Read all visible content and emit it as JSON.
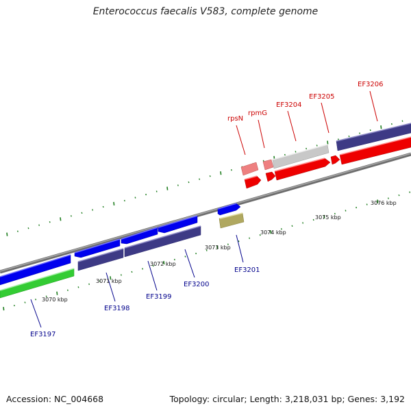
{
  "title": "Enterococcus faecalis V583, complete genome",
  "footer": {
    "accession": "Accession: NC_004668",
    "topology": "Topology: circular; Length: 3,218,031 bp; Genes: 3,192"
  },
  "colors": {
    "backbone": "#7d7d7d",
    "tick": "#1e7d1e",
    "label_red": "#cc0000",
    "label_blue": "#00008b",
    "blue_gene": "#0000ee",
    "purple_gene": "#3d3a85",
    "green_gene": "#33cc33",
    "red_gene": "#ee0000",
    "pink_gene": "#ee8080",
    "grey_gene": "#c8c8c8",
    "olive_gene": "#b0a860"
  },
  "scale_labels": [
    {
      "text": "3070 kbp",
      "kbp": 3070
    },
    {
      "text": "3071 kbp",
      "kbp": 3071
    },
    {
      "text": "3072 kbp",
      "kbp": 3072
    },
    {
      "text": "3073 kbp",
      "kbp": 3073
    },
    {
      "text": "3074 kbp",
      "kbp": 3074
    },
    {
      "text": "3075 kbp",
      "kbp": 3075
    },
    {
      "text": "3076 kbp",
      "kbp": 3076
    }
  ],
  "gene_labels": [
    {
      "text": "EF3197",
      "color": "blue"
    },
    {
      "text": "EF3198",
      "color": "blue"
    },
    {
      "text": "EF3199",
      "color": "blue"
    },
    {
      "text": "EF3200",
      "color": "blue"
    },
    {
      "text": "EF3201",
      "color": "blue"
    },
    {
      "text": "rpsN",
      "color": "red"
    },
    {
      "text": "rpmG",
      "color": "red"
    },
    {
      "text": "EF3204",
      "color": "red"
    },
    {
      "text": "EF3205",
      "color": "red"
    },
    {
      "text": "EF3206",
      "color": "red"
    }
  ]
}
